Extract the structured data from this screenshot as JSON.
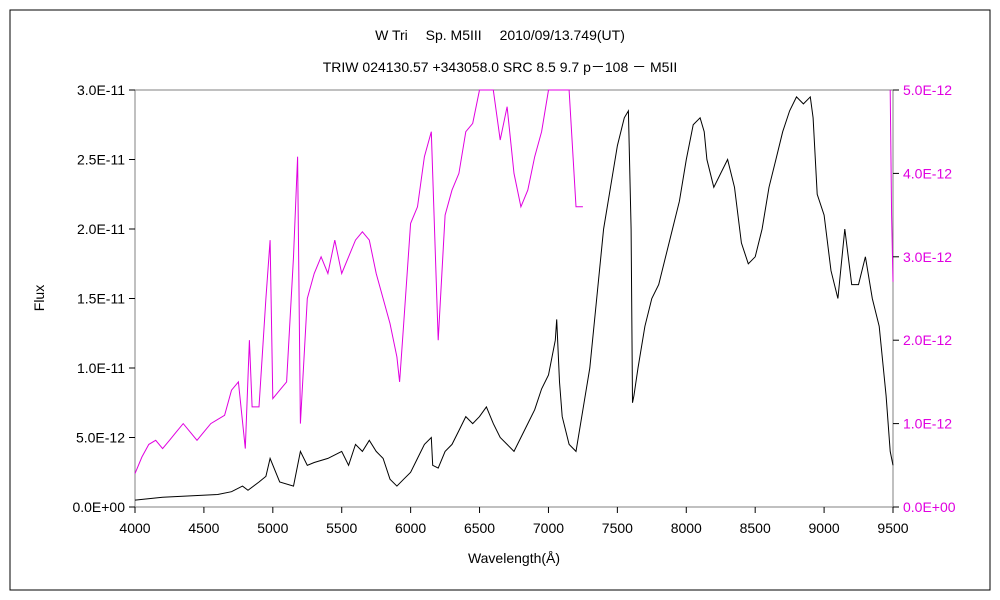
{
  "chart_data": {
    "type": "line",
    "title": "W Tri　 Sp. M5III　 2010/09/13.749(UT)",
    "subtitle": "TRIW 024130.57 +343058.0 SRC 8.5 9.7 p－108 － M5II",
    "xlabel": "Wavelength(Å)",
    "ylabel": "Flux",
    "xlim": [
      4000,
      9500
    ],
    "ylim": [
      0,
      3e-11
    ],
    "y2lim": [
      0,
      5e-12
    ],
    "x_ticks": [
      "4000",
      "4500",
      "5000",
      "5500",
      "6000",
      "6500",
      "7000",
      "7500",
      "8000",
      "8500",
      "9000",
      "9500"
    ],
    "y_ticks_left": [
      "0.0E+00",
      "5.0E-12",
      "1.0E-11",
      "1.5E-11",
      "2.0E-11",
      "2.5E-11",
      "3.0E-11"
    ],
    "y_ticks_right": [
      "0.0E+00",
      "1.0E-12",
      "2.0E-12",
      "3.0E-12",
      "4.0E-12",
      "5.0E-12"
    ],
    "grid": false,
    "colors": {
      "primary": "#000000",
      "secondary": "#e000e0"
    },
    "series": [
      {
        "axis": "left",
        "x": [
          4000,
          4200,
          4400,
          4600,
          4700,
          4780,
          4820,
          4900,
          4950,
          4980,
          5050,
          5150,
          5200,
          5250,
          5300,
          5400,
          5500,
          5550,
          5600,
          5650,
          5700,
          5750,
          5800,
          5850,
          5900,
          5950,
          6000,
          6050,
          6100,
          6150,
          6160,
          6200,
          6250,
          6300,
          6350,
          6400,
          6450,
          6500,
          6550,
          6600,
          6650,
          6700,
          6750,
          6800,
          6850,
          6900,
          6950,
          7000,
          7050,
          7060,
          7080,
          7100,
          7150,
          7200,
          7250,
          7300,
          7350,
          7400,
          7450,
          7500,
          7550,
          7580,
          7600,
          7610,
          7620,
          7650,
          7700,
          7750,
          7800,
          7850,
          7900,
          7950,
          8000,
          8050,
          8100,
          8130,
          8150,
          8200,
          8250,
          8300,
          8350,
          8400,
          8450,
          8500,
          8550,
          8600,
          8650,
          8700,
          8750,
          8800,
          8850,
          8900,
          8920,
          8950,
          9000,
          9050,
          9100,
          9150,
          9200,
          9250,
          9300,
          9350,
          9400,
          9450,
          9480,
          9500
        ],
        "y": [
          5e-13,
          7e-13,
          8e-13,
          9e-13,
          1.1e-12,
          1.5e-12,
          1.2e-12,
          1.8e-12,
          2.2e-12,
          3.5e-12,
          1.8e-12,
          1.5e-12,
          4e-12,
          3e-12,
          3.2e-12,
          3.5e-12,
          4e-12,
          3e-12,
          4.5e-12,
          4e-12,
          4.8e-12,
          4e-12,
          3.5e-12,
          2e-12,
          1.5e-12,
          2e-12,
          2.5e-12,
          3.5e-12,
          4.5e-12,
          5e-12,
          3e-12,
          2.8e-12,
          4e-12,
          4.5e-12,
          5.5e-12,
          6.5e-12,
          6e-12,
          6.5e-12,
          7.2e-12,
          6e-12,
          5e-12,
          4.5e-12,
          4e-12,
          5e-12,
          6e-12,
          7e-12,
          8.5e-12,
          9.5e-12,
          1.2e-11,
          1.35e-11,
          9e-12,
          6.5e-12,
          4.5e-12,
          4e-12,
          7e-12,
          1e-11,
          1.5e-11,
          2e-11,
          2.3e-11,
          2.6e-11,
          2.8e-11,
          2.85e-11,
          2e-11,
          7.5e-12,
          8e-12,
          1e-11,
          1.3e-11,
          1.5e-11,
          1.6e-11,
          1.8e-11,
          2e-11,
          2.2e-11,
          2.5e-11,
          2.75e-11,
          2.8e-11,
          2.7e-11,
          2.5e-11,
          2.3e-11,
          2.4e-11,
          2.5e-11,
          2.3e-11,
          1.9e-11,
          1.75e-11,
          1.8e-11,
          2e-11,
          2.3e-11,
          2.5e-11,
          2.7e-11,
          2.85e-11,
          2.95e-11,
          2.9e-11,
          2.95e-11,
          2.8e-11,
          2.25e-11,
          2.1e-11,
          1.7e-11,
          1.5e-11,
          2e-11,
          1.6e-11,
          1.6e-11,
          1.8e-11,
          1.5e-11,
          1.3e-11,
          8e-12,
          4e-12,
          3e-12
        ]
      },
      {
        "axis": "right",
        "x": [
          4000,
          4050,
          4100,
          4150,
          4200,
          4250,
          4300,
          4350,
          4400,
          4450,
          4500,
          4550,
          4600,
          4650,
          4700,
          4750,
          4800,
          4830,
          4850,
          4900,
          4950,
          4980,
          5000,
          5050,
          5100,
          5150,
          5180,
          5200,
          5250,
          5300,
          5350,
          5400,
          5450,
          5500,
          5550,
          5600,
          5650,
          5700,
          5750,
          5800,
          5850,
          5900,
          5920,
          5950,
          6000,
          6050,
          6100,
          6150,
          6200,
          6250,
          6300,
          6350,
          6400,
          6450,
          6500,
          6520,
          6550,
          6600,
          6650,
          6700,
          6750,
          6800,
          6850,
          6900,
          6950,
          7000,
          7050,
          7100,
          7150,
          7200,
          7250,
          9480,
          9490,
          9500
        ],
        "y": [
          4e-13,
          6e-13,
          7.5e-13,
          8e-13,
          7e-13,
          8e-13,
          9e-13,
          1e-12,
          9e-13,
          8e-13,
          9e-13,
          1e-12,
          1.05e-12,
          1.1e-12,
          1.4e-12,
          1.5e-12,
          7e-13,
          2e-12,
          1.2e-12,
          1.2e-12,
          2.5e-12,
          3.2e-12,
          1.3e-12,
          1.4e-12,
          1.5e-12,
          3e-12,
          4.2e-12,
          1e-12,
          2.5e-12,
          2.8e-12,
          3e-12,
          2.8e-12,
          3.2e-12,
          2.8e-12,
          3e-12,
          3.2e-12,
          3.3e-12,
          3.2e-12,
          2.8e-12,
          2.5e-12,
          2.2e-12,
          1.8e-12,
          1.5e-12,
          2.2e-12,
          3.4e-12,
          3.6e-12,
          4.2e-12,
          4.5e-12,
          2e-12,
          3.5e-12,
          3.8e-12,
          4e-12,
          4.5e-12,
          4.6e-12,
          5e-12,
          5e-12,
          5e-12,
          5e-12,
          4.4e-12,
          4.8e-12,
          4e-12,
          3.6e-12,
          3.8e-12,
          4.2e-12,
          4.5e-12,
          5e-12,
          5e-12,
          5e-12,
          5e-12,
          3.6e-12,
          3.6e-12,
          5e-12,
          3.5e-12,
          2.7e-12
        ]
      }
    ]
  }
}
